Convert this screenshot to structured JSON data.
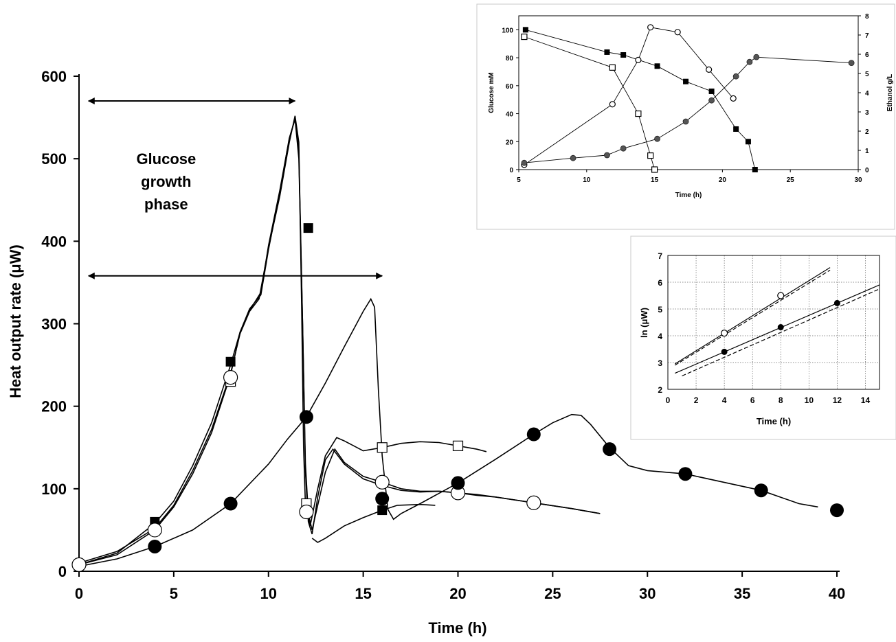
{
  "chart_data": [
    {
      "type": "line",
      "xlabel": "Time (h)",
      "ylabel": "Heat output rate (μW)",
      "xlim": [
        0,
        40
      ],
      "ylim": [
        0,
        600
      ],
      "xticks": [
        0,
        5,
        10,
        15,
        20,
        25,
        30,
        35,
        40
      ],
      "yticks": [
        0,
        100,
        200,
        300,
        400,
        500,
        600
      ],
      "annotations": [
        {
          "text_lines": [
            "Glucose",
            "growth",
            "phase"
          ],
          "x": 4.6,
          "y": 470
        },
        {
          "arrow": "double",
          "x_from": 0.5,
          "x_to": 11.4,
          "y": 570
        },
        {
          "arrow": "double",
          "x_from": 0.5,
          "x_to": 16.0,
          "y": 358
        }
      ],
      "series": [
        {
          "marker": "filled-square",
          "points": [
            [
              4,
              60
            ],
            [
              8,
              254
            ],
            [
              12.1,
              416
            ],
            [
              16,
              74
            ]
          ],
          "curve": [
            [
              0,
              8
            ],
            [
              2,
              22
            ],
            [
              4,
              58
            ],
            [
              5,
              85
            ],
            [
              6,
              128
            ],
            [
              7,
              180
            ],
            [
              8,
              250
            ],
            [
              8.5,
              290
            ],
            [
              9,
              318
            ],
            [
              9.6,
              335
            ],
            [
              10,
              390
            ],
            [
              10.6,
              460
            ],
            [
              11.1,
              525
            ],
            [
              11.4,
              548
            ],
            [
              11.6,
              500
            ],
            [
              11.8,
              300
            ],
            [
              11.95,
              120
            ],
            [
              12.1,
              60
            ],
            [
              12.3,
              45
            ],
            [
              12.6,
              90
            ],
            [
              13,
              135
            ],
            [
              13.4,
              148
            ],
            [
              14,
              130
            ],
            [
              15,
              112
            ],
            [
              16,
              104
            ],
            [
              17,
              98
            ],
            [
              18,
              96
            ],
            [
              19,
              97
            ],
            [
              20,
              95
            ],
            [
              21,
              92
            ],
            [
              22,
              90
            ],
            [
              24,
              83
            ],
            [
              26,
              76
            ],
            [
              27.5,
              70
            ]
          ]
        },
        {
          "marker": "open-square",
          "points": [
            [
              4,
              50
            ],
            [
              8,
              230
            ],
            [
              12,
              82
            ],
            [
              16,
              150
            ],
            [
              20,
              152
            ]
          ],
          "curve": [
            [
              0,
              10
            ],
            [
              2,
              24
            ],
            [
              4,
              52
            ],
            [
              5,
              80
            ],
            [
              6,
              122
            ],
            [
              7,
              172
            ],
            [
              8,
              240
            ],
            [
              8.5,
              288
            ],
            [
              9,
              315
            ],
            [
              9.5,
              330
            ],
            [
              10,
              392
            ],
            [
              10.6,
              455
            ],
            [
              11.1,
              520
            ],
            [
              11.4,
              552
            ],
            [
              11.6,
              520
            ],
            [
              11.75,
              320
            ],
            [
              11.85,
              150
            ],
            [
              11.95,
              80
            ],
            [
              12.2,
              55
            ],
            [
              12.6,
              100
            ],
            [
              13,
              140
            ],
            [
              13.6,
              162
            ],
            [
              14,
              158
            ],
            [
              15,
              146
            ],
            [
              16,
              150
            ],
            [
              17,
              155
            ],
            [
              18,
              157
            ],
            [
              19,
              156
            ],
            [
              20,
              152
            ],
            [
              21,
              148
            ],
            [
              21.5,
              145
            ]
          ]
        },
        {
          "marker": "open-circle",
          "points": [
            [
              0,
              8
            ],
            [
              4,
              50
            ],
            [
              8,
              235
            ],
            [
              12,
              72
            ],
            [
              16,
              108
            ],
            [
              20,
              95
            ],
            [
              24,
              83
            ]
          ],
          "curve": [
            [
              0,
              8
            ],
            [
              2,
              20
            ],
            [
              4,
              50
            ],
            [
              5,
              78
            ],
            [
              6,
              118
            ],
            [
              7,
              168
            ],
            [
              8,
              238
            ],
            [
              8.5,
              290
            ],
            [
              9,
              316
            ],
            [
              9.6,
              338
            ],
            [
              10,
              395
            ],
            [
              10.6,
              462
            ],
            [
              11.1,
              525
            ],
            [
              11.4,
              548
            ],
            [
              11.6,
              510
            ],
            [
              11.8,
              300
            ],
            [
              11.95,
              130
            ],
            [
              12.1,
              70
            ],
            [
              12.3,
              50
            ],
            [
              12.6,
              80
            ],
            [
              13,
              120
            ],
            [
              13.5,
              148
            ],
            [
              14,
              132
            ],
            [
              15,
              115
            ],
            [
              16,
              108
            ],
            [
              17,
              100
            ],
            [
              18,
              97
            ],
            [
              19,
              97
            ],
            [
              20,
              95
            ],
            [
              21,
              93
            ],
            [
              22,
              90
            ],
            [
              24,
              83
            ],
            [
              26,
              76
            ],
            [
              27.5,
              70
            ]
          ]
        },
        {
          "marker": "filled-circle",
          "points": [
            [
              4,
              30
            ],
            [
              8,
              82
            ],
            [
              12,
              187
            ],
            [
              16,
              88
            ],
            [
              20,
              107
            ],
            [
              24,
              166
            ],
            [
              28,
              148
            ],
            [
              32,
              118
            ],
            [
              36,
              98
            ],
            [
              40,
              74
            ]
          ],
          "curve": [
            [
              0,
              6
            ],
            [
              2,
              15
            ],
            [
              4,
              30
            ],
            [
              6,
              50
            ],
            [
              8,
              82
            ],
            [
              10,
              130
            ],
            [
              11,
              160
            ],
            [
              12,
              187
            ],
            [
              13,
              228
            ],
            [
              14,
              272
            ],
            [
              15,
              315
            ],
            [
              15.4,
              330
            ],
            [
              15.6,
              320
            ],
            [
              15.8,
              220
            ],
            [
              16,
              140
            ],
            [
              16.3,
              75
            ],
            [
              16.6,
              63
            ],
            [
              17,
              70
            ],
            [
              18,
              82
            ],
            [
              20,
              107
            ],
            [
              22,
              136
            ],
            [
              24,
              166
            ],
            [
              25,
              180
            ],
            [
              26,
              190
            ],
            [
              26.5,
              189
            ],
            [
              27,
              178
            ],
            [
              28,
              150
            ],
            [
              29,
              128
            ],
            [
              30,
              122
            ],
            [
              32,
              118
            ],
            [
              34,
              108
            ],
            [
              36,
              98
            ],
            [
              38,
              82
            ],
            [
              39,
              78
            ]
          ]
        },
        {
          "marker": "none",
          "style": "short-segment",
          "curve": [
            [
              12.3,
              40
            ],
            [
              12.6,
              35
            ],
            [
              13,
              40
            ],
            [
              14,
              55
            ],
            [
              15,
              65
            ],
            [
              16,
              74
            ],
            [
              16.8,
              80
            ],
            [
              18,
              81
            ],
            [
              18.8,
              80
            ]
          ]
        }
      ]
    },
    {
      "type": "line",
      "xlabel": "Time (h)",
      "ylabel": "Glucose mM",
      "y2label": "Ethanol g/L",
      "xlim": [
        5,
        30
      ],
      "ylim": [
        0,
        110
      ],
      "y2lim": [
        0,
        8
      ],
      "xticks": [
        5,
        10,
        15,
        20,
        25,
        30
      ],
      "yticks": [
        0,
        20,
        40,
        60,
        80,
        100
      ],
      "y2ticks": [
        0,
        1,
        2,
        3,
        4,
        5,
        6,
        7,
        8
      ],
      "series": [
        {
          "marker": "filled-square",
          "axis": "left",
          "x": [
            5.5,
            11.5,
            12.7,
            15.2,
            17.3,
            19.2,
            21.0,
            21.9,
            22.4
          ],
          "y": [
            100,
            84,
            82,
            74,
            63,
            56,
            29,
            20,
            0
          ]
        },
        {
          "marker": "open-square",
          "axis": "left",
          "x": [
            5.4,
            11.9,
            13.8,
            14.7,
            15.0
          ],
          "y": [
            95,
            73,
            40,
            10,
            0
          ]
        },
        {
          "marker": "open-circle",
          "axis": "right",
          "x": [
            5.4,
            11.9,
            13.8,
            14.7,
            16.7,
            19.0,
            20.8
          ],
          "y": [
            0.25,
            3.4,
            5.7,
            7.4,
            7.15,
            5.2,
            3.7
          ]
        },
        {
          "marker": "filled-circle",
          "axis": "right",
          "x": [
            5.4,
            9.0,
            11.5,
            12.7,
            15.2,
            17.3,
            19.2,
            21.0,
            22.0,
            22.5,
            29.5
          ],
          "y": [
            0.35,
            0.6,
            0.75,
            1.1,
            1.6,
            2.5,
            3.6,
            4.85,
            5.6,
            5.85,
            5.55
          ]
        }
      ]
    },
    {
      "type": "line",
      "xlabel": "Time (h)",
      "ylabel": "ln (μW)",
      "xlim": [
        0,
        15
      ],
      "ylim": [
        2,
        7
      ],
      "xticks": [
        0,
        2,
        4,
        6,
        8,
        10,
        12,
        14
      ],
      "yticks": [
        2,
        3,
        4,
        5,
        6,
        7
      ],
      "grid": true,
      "series": [
        {
          "marker": "open-circle",
          "points": [
            [
              4,
              4.1
            ],
            [
              8,
              5.5
            ]
          ],
          "fit_solid": [
            [
              0.5,
              2.95
            ],
            [
              11.5,
              6.55
            ]
          ],
          "fit_dashed": [
            [
              0.5,
              2.9
            ],
            [
              11.5,
              6.45
            ]
          ]
        },
        {
          "marker": "filled-circle",
          "points": [
            [
              4,
              3.4
            ],
            [
              8,
              4.32
            ],
            [
              12,
              5.22
            ]
          ],
          "fit_solid": [
            [
              0.5,
              2.6
            ],
            [
              15,
              5.9
            ]
          ],
          "fit_dashed": [
            [
              1,
              2.5
            ],
            [
              15,
              5.75
            ]
          ]
        }
      ]
    }
  ]
}
